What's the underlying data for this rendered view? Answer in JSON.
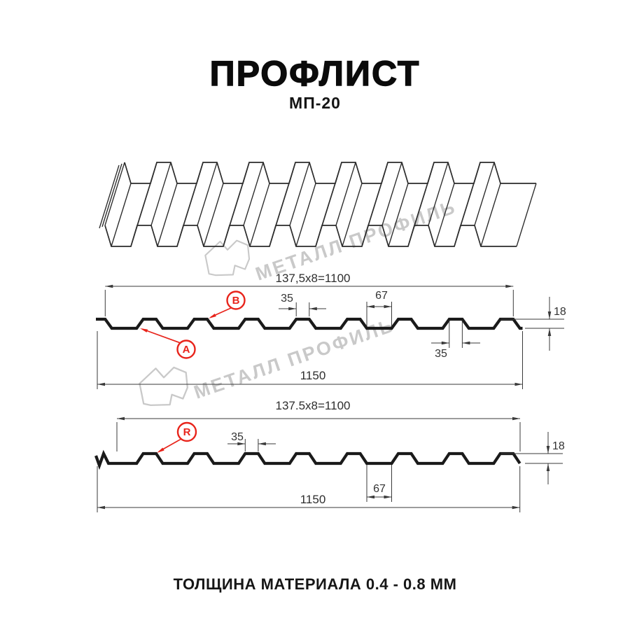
{
  "page": {
    "title": "ПРОФЛИСТ",
    "subtitle": "МП-20",
    "thickness_note": "ТОЛЩИНА МАТЕРИАЛА 0.4 - 0.8 ММ"
  },
  "watermark": {
    "text": "МЕТАЛЛ ПРОФИЛЬ"
  },
  "colors": {
    "background": "#ffffff",
    "line": "#1a1a1a",
    "line_3d": "#2b2b2b",
    "dim": "#3a3a3a",
    "accent_red": "#e8241b",
    "watermark": "#c9c9c9"
  },
  "section_top": {
    "width_formula": "137,5x8=1100",
    "rib_top_width": "35",
    "valley_width": "67",
    "height": "18",
    "rib_top_width_lower": "35",
    "total_width": "1150",
    "labels": {
      "a": "A",
      "b": "B"
    }
  },
  "section_bottom": {
    "width_formula": "137.5x8=1100",
    "rib_top_width": "35",
    "height": "18",
    "valley_width": "67",
    "total_width": "1150",
    "labels": {
      "r": "R"
    }
  }
}
